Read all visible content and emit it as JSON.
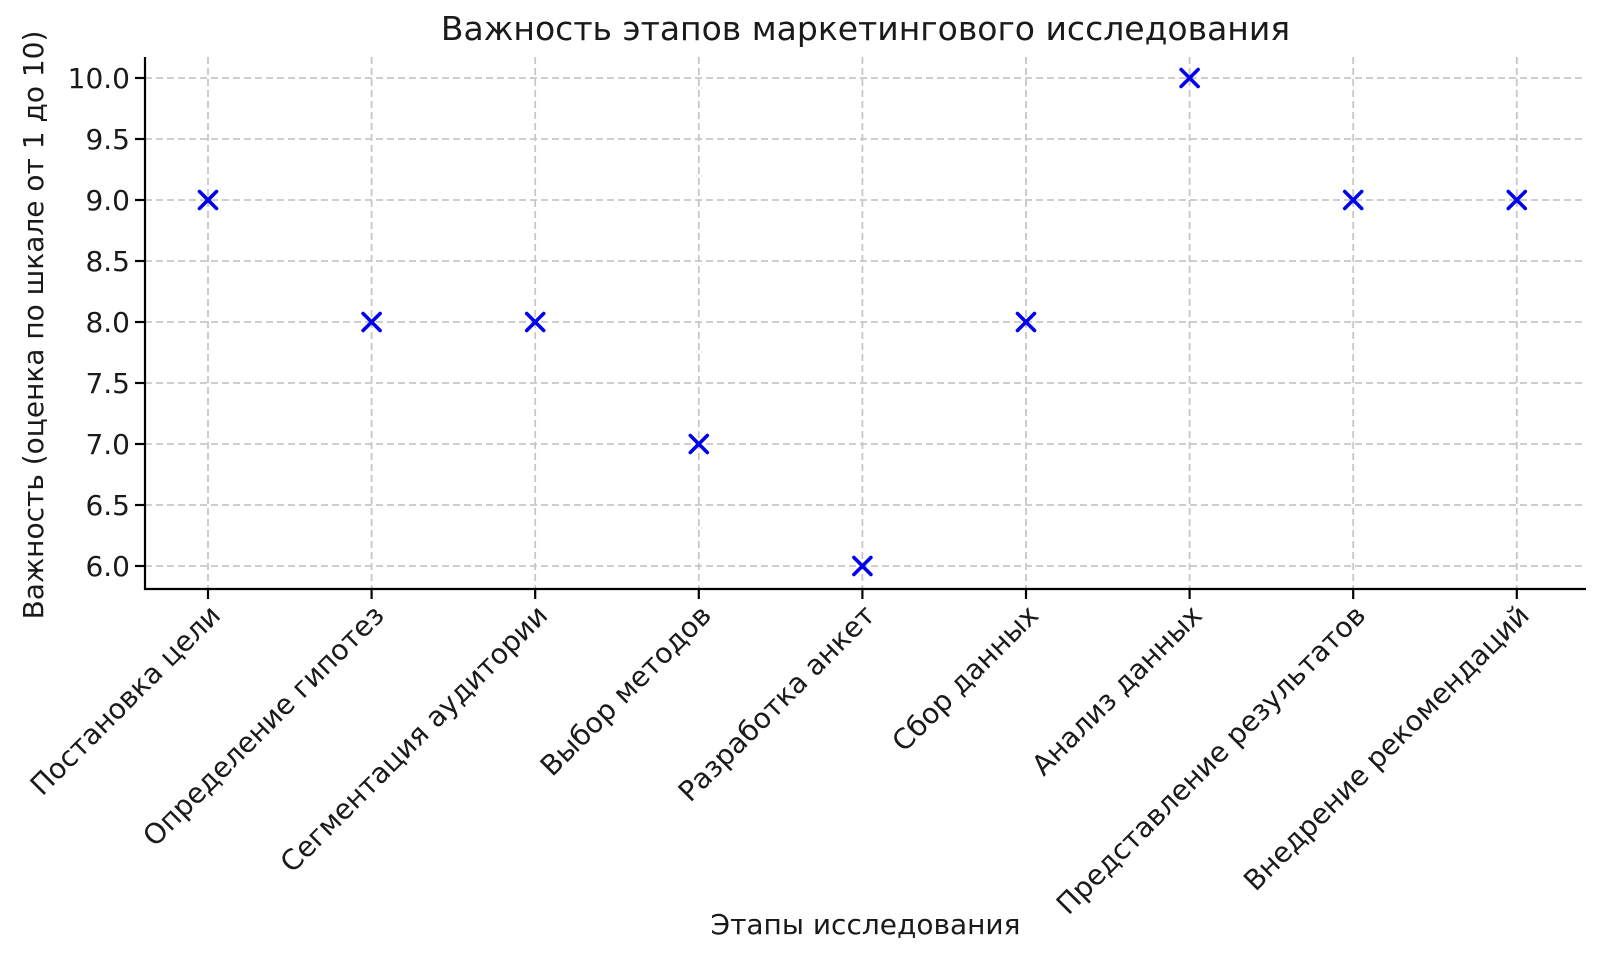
{
  "chart_data": {
    "type": "scatter",
    "title": "Важность этапов маркетингового исследования",
    "xlabel": "Этапы исследования",
    "ylabel": "Важность (оценка по шкале от 1 до 10)",
    "categories": [
      "Постановка цели",
      "Определение гипотез",
      "Сегментация аудитории",
      "Выбор методов",
      "Разработка анкет",
      "Сбор данных",
      "Анализ данных",
      "Представление результатов",
      "Внедрение рекомендаций"
    ],
    "values": [
      9,
      8,
      8,
      7,
      6,
      8,
      10,
      9,
      9
    ],
    "yticks": [
      6.0,
      6.5,
      7.0,
      7.5,
      8.0,
      8.5,
      9.0,
      9.5,
      10.0
    ],
    "ytick_labels": [
      "6.0",
      "6.5",
      "7.0",
      "7.5",
      "8.0",
      "8.5",
      "9.0",
      "9.5",
      "10.0"
    ],
    "ylim": [
      5.8,
      10.2
    ],
    "grid": true,
    "grid_style": "dashed",
    "legend_position": "none",
    "marker": "x",
    "colors": {
      "marker": "#0000EE",
      "grid": "#c7c7c7",
      "axis": "#000000",
      "text": "#1a1a1a",
      "background": "#ffffff"
    }
  }
}
